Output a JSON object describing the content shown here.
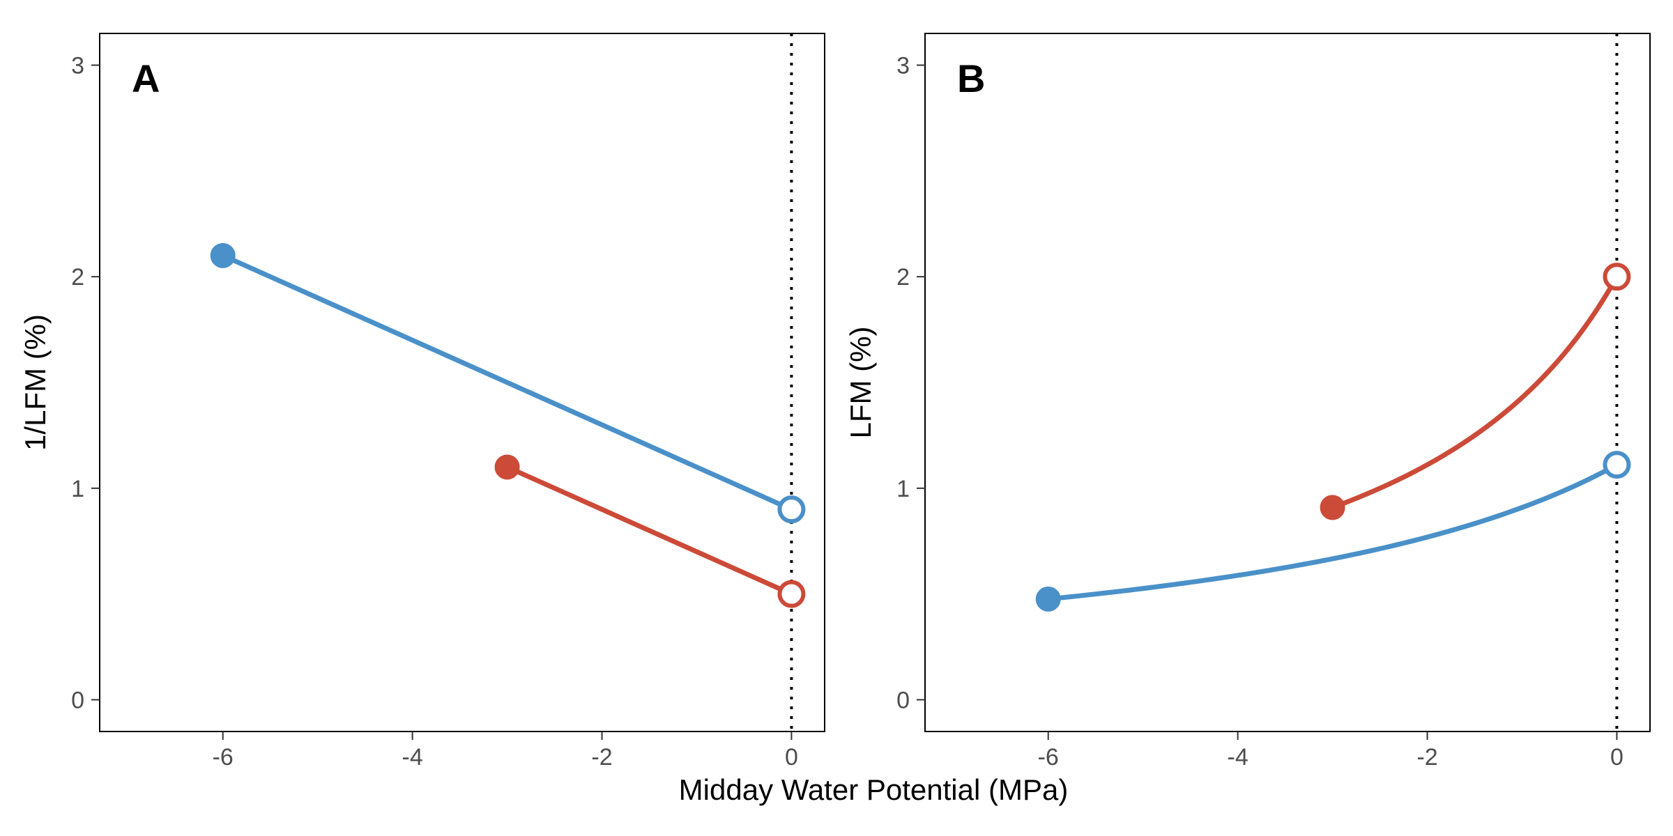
{
  "colors": {
    "series_a": "#4a90c9",
    "series_b": "#cc4a38",
    "panel_border": "#000000",
    "reference_line": "#000000"
  },
  "figure": {
    "shared_xlabel": "Midday Water Potential (MPa)"
  },
  "chart_data": [
    {
      "type": "line",
      "panel_label": "A",
      "xlabel": "",
      "ylabel": "1/LFM (%)",
      "xlim": [
        -7.3,
        0.35
      ],
      "ylim": [
        -0.15,
        3.15
      ],
      "x_ticks": [
        -6,
        -4,
        -2,
        0
      ],
      "x_tick_labels": [
        "-6",
        "-4",
        "-2",
        "0"
      ],
      "y_ticks": [
        0,
        1,
        2,
        3
      ],
      "y_tick_labels": [
        "0",
        "1",
        "2",
        "3"
      ],
      "reference_vline_x": 0,
      "grid": false,
      "series": [
        {
          "color_key": "series_a",
          "shape": "linear",
          "x": [
            -6,
            0
          ],
          "y": [
            2.1,
            0.9
          ],
          "endpoint_markers": [
            "filled",
            "open"
          ]
        },
        {
          "color_key": "series_b",
          "shape": "linear",
          "x": [
            -3,
            0
          ],
          "y": [
            1.1,
            0.5
          ],
          "endpoint_markers": [
            "filled",
            "open"
          ]
        }
      ]
    },
    {
      "type": "line",
      "panel_label": "B",
      "xlabel": "",
      "ylabel": "LFM (%)",
      "xlim": [
        -7.3,
        0.35
      ],
      "ylim": [
        -0.15,
        3.15
      ],
      "x_ticks": [
        -6,
        -4,
        -2,
        0
      ],
      "x_tick_labels": [
        "-6",
        "-4",
        "-2",
        "0"
      ],
      "y_ticks": [
        0,
        1,
        2,
        3
      ],
      "y_tick_labels": [
        "0",
        "1",
        "2",
        "3"
      ],
      "reference_vline_x": 0,
      "grid": false,
      "series": [
        {
          "color_key": "series_a",
          "shape": "reciprocal",
          "x": [
            -6,
            0
          ],
          "y": [
            0.476,
            1.111
          ],
          "endpoint_markers": [
            "filled",
            "open"
          ]
        },
        {
          "color_key": "series_b",
          "shape": "reciprocal",
          "x": [
            -3,
            0
          ],
          "y": [
            0.909,
            2.0
          ],
          "endpoint_markers": [
            "filled",
            "open"
          ]
        }
      ]
    }
  ]
}
